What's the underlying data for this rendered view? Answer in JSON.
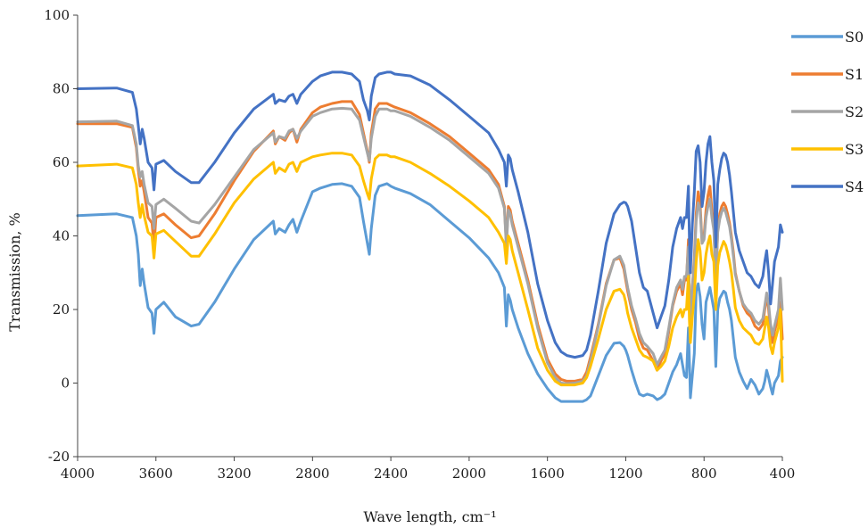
{
  "chart_data": {
    "type": "line",
    "title": "",
    "xlabel": "Wave length, cm⁻¹",
    "ylabel": "Transmission, %",
    "xlim": [
      4000,
      400
    ],
    "ylim": [
      -20,
      100
    ],
    "x_reversed": true,
    "xticks": [
      4000,
      3600,
      3200,
      2800,
      2400,
      2000,
      1600,
      1200,
      800,
      400
    ],
    "yticks": [
      -20,
      0,
      20,
      40,
      60,
      80,
      100
    ],
    "grid": false,
    "legend_position": "right",
    "x": [
      4000,
      3800,
      3720,
      3700,
      3690,
      3680,
      3670,
      3660,
      3640,
      3620,
      3610,
      3600,
      3560,
      3500,
      3420,
      3380,
      3300,
      3200,
      3100,
      3000,
      2990,
      2970,
      2940,
      2920,
      2900,
      2880,
      2860,
      2800,
      2760,
      2700,
      2650,
      2600,
      2560,
      2540,
      2520,
      2510,
      2500,
      2480,
      2460,
      2420,
      2400,
      2380,
      2300,
      2200,
      2100,
      2000,
      1900,
      1850,
      1820,
      1810,
      1800,
      1790,
      1780,
      1750,
      1700,
      1650,
      1600,
      1560,
      1530,
      1500,
      1460,
      1420,
      1400,
      1380,
      1340,
      1300,
      1260,
      1230,
      1210,
      1200,
      1190,
      1170,
      1150,
      1130,
      1110,
      1090,
      1060,
      1040,
      1020,
      1000,
      980,
      960,
      940,
      920,
      910,
      900,
      890,
      880,
      875,
      870,
      860,
      850,
      840,
      830,
      820,
      810,
      800,
      790,
      780,
      770,
      760,
      750,
      740,
      730,
      720,
      710,
      700,
      690,
      680,
      670,
      660,
      650,
      640,
      620,
      600,
      580,
      560,
      540,
      520,
      500,
      490,
      480,
      470,
      460,
      450,
      440,
      420,
      410,
      400
    ],
    "series": [
      {
        "name": "S0",
        "color": "#5b9bd5",
        "values": [
          45.5,
          46.0,
          45.0,
          40.0,
          35.0,
          26.5,
          31.0,
          27.0,
          20.5,
          19.0,
          13.5,
          20.0,
          22.0,
          18.0,
          15.5,
          16.0,
          22.0,
          31.0,
          39.0,
          44.0,
          40.5,
          42.0,
          41.0,
          43.0,
          44.5,
          41.0,
          44.0,
          52.0,
          53.0,
          54.0,
          54.2,
          53.5,
          50.5,
          44.0,
          38.0,
          35.0,
          42.0,
          51.0,
          53.5,
          54.2,
          53.5,
          53.0,
          51.5,
          48.5,
          44.0,
          39.5,
          34.0,
          30.0,
          26.0,
          15.5,
          24.0,
          22.5,
          20.0,
          15.0,
          8.0,
          2.5,
          -1.5,
          -4.0,
          -5.0,
          -5.0,
          -5.0,
          -5.0,
          -4.5,
          -3.5,
          2.0,
          7.5,
          10.8,
          11.0,
          10.0,
          9.0,
          7.5,
          3.5,
          0.0,
          -3.0,
          -3.5,
          -3.0,
          -3.5,
          -4.5,
          -4.0,
          -3.0,
          0.0,
          3.0,
          5.0,
          8.0,
          5.0,
          2.0,
          1.5,
          15.0,
          6.0,
          -4.0,
          2.0,
          8.0,
          25.0,
          27.0,
          23.5,
          16.0,
          12.0,
          22.0,
          24.0,
          26.0,
          23.0,
          20.0,
          4.5,
          20.0,
          23.0,
          24.0,
          25.0,
          24.5,
          22.0,
          20.0,
          17.0,
          12.0,
          7.0,
          3.0,
          0.5,
          -1.5,
          1.0,
          -0.5,
          -3.0,
          -1.5,
          0.5,
          3.5,
          1.5,
          -1.0,
          -3.0,
          0.0,
          2.0,
          6.0,
          7.0
        ]
      },
      {
        "name": "S1",
        "color": "#ed7d31",
        "values": [
          70.5,
          70.5,
          69.5,
          64.0,
          58.0,
          53.5,
          55.0,
          52.0,
          45.0,
          43.5,
          37.0,
          45.0,
          46.0,
          43.0,
          39.5,
          40.0,
          46.0,
          55.0,
          63.0,
          68.5,
          65.0,
          67.0,
          66.0,
          68.0,
          69.0,
          65.5,
          69.0,
          73.5,
          75.0,
          76.0,
          76.5,
          76.5,
          73.0,
          68.0,
          63.0,
          60.0,
          68.0,
          74.5,
          76.0,
          76.0,
          75.5,
          75.0,
          73.5,
          70.5,
          67.0,
          62.5,
          58.0,
          54.0,
          48.0,
          38.0,
          48.0,
          47.0,
          44.0,
          38.0,
          28.0,
          16.0,
          6.5,
          2.5,
          1.0,
          0.5,
          0.5,
          1.0,
          3.0,
          7.0,
          16.0,
          27.0,
          33.5,
          34.0,
          31.0,
          28.0,
          25.0,
          20.0,
          16.5,
          12.0,
          9.5,
          9.0,
          6.0,
          3.5,
          6.0,
          8.0,
          14.0,
          21.0,
          25.0,
          27.0,
          24.0,
          28.0,
          28.0,
          39.0,
          24.0,
          17.0,
          26.0,
          34.0,
          46.0,
          52.0,
          49.0,
          38.0,
          40.0,
          47.0,
          51.0,
          53.5,
          47.0,
          43.0,
          27.0,
          42.0,
          46.0,
          48.0,
          49.0,
          48.0,
          46.0,
          43.5,
          40.0,
          35.5,
          30.0,
          25.0,
          21.0,
          19.0,
          18.0,
          15.5,
          14.5,
          16.0,
          20.0,
          24.0,
          20.0,
          14.0,
          11.0,
          14.0,
          18.0,
          22.0,
          12.0
        ]
      },
      {
        "name": "S2",
        "color": "#a5a5a5",
        "values": [
          71.0,
          71.2,
          70.0,
          65.0,
          59.0,
          56.0,
          57.5,
          54.0,
          49.0,
          48.0,
          42.0,
          48.5,
          50.0,
          47.5,
          44.0,
          43.5,
          48.5,
          56.0,
          63.5,
          68.0,
          65.5,
          67.0,
          66.5,
          68.5,
          69.0,
          66.5,
          68.5,
          72.5,
          73.5,
          74.5,
          74.7,
          74.5,
          71.5,
          67.0,
          62.5,
          60.5,
          66.5,
          72.5,
          74.5,
          74.5,
          74.0,
          74.0,
          72.5,
          69.5,
          66.0,
          61.5,
          57.0,
          53.0,
          47.5,
          37.0,
          47.0,
          46.0,
          43.0,
          37.0,
          27.0,
          15.0,
          5.5,
          1.5,
          0.0,
          -0.2,
          0.0,
          0.5,
          2.0,
          6.0,
          15.5,
          26.5,
          33.5,
          34.5,
          32.0,
          29.0,
          26.0,
          21.0,
          17.5,
          13.5,
          11.0,
          10.0,
          8.0,
          5.0,
          7.0,
          9.0,
          15.0,
          21.5,
          26.0,
          28.0,
          25.5,
          29.0,
          29.0,
          37.0,
          25.0,
          18.0,
          26.0,
          33.0,
          44.0,
          49.0,
          47.0,
          38.0,
          39.0,
          45.0,
          48.0,
          50.0,
          45.0,
          41.5,
          28.0,
          41.0,
          44.5,
          46.5,
          47.5,
          46.5,
          44.5,
          42.5,
          39.0,
          34.5,
          29.5,
          25.0,
          21.5,
          20.0,
          19.0,
          17.0,
          16.0,
          17.5,
          21.0,
          24.5,
          21.5,
          16.0,
          13.0,
          15.5,
          20.0,
          28.5,
          20.0
        ]
      },
      {
        "name": "S3",
        "color": "#ffc000",
        "values": [
          59.0,
          59.5,
          58.5,
          54.0,
          49.0,
          45.0,
          48.5,
          45.5,
          41.0,
          40.0,
          34.0,
          40.5,
          41.5,
          38.5,
          34.5,
          34.5,
          40.5,
          49.0,
          55.5,
          60.0,
          57.0,
          58.5,
          57.5,
          59.5,
          60.0,
          57.5,
          60.0,
          61.5,
          62.0,
          62.5,
          62.5,
          62.0,
          59.0,
          55.0,
          51.5,
          50.0,
          55.5,
          61.0,
          62.0,
          62.0,
          61.5,
          61.5,
          60.0,
          57.0,
          53.5,
          49.5,
          45.0,
          41.0,
          38.0,
          32.5,
          40.0,
          39.0,
          36.0,
          30.0,
          20.0,
          9.5,
          3.5,
          0.5,
          -0.5,
          -0.5,
          -0.5,
          0.0,
          1.5,
          4.5,
          12.0,
          20.0,
          25.0,
          25.5,
          24.0,
          22.0,
          19.0,
          15.0,
          12.0,
          9.0,
          7.5,
          7.0,
          6.0,
          3.5,
          4.5,
          6.0,
          10.0,
          15.0,
          18.0,
          20.0,
          18.0,
          20.0,
          20.0,
          29.0,
          17.0,
          11.0,
          18.0,
          24.0,
          33.0,
          39.0,
          36.0,
          28.0,
          30.0,
          35.0,
          38.0,
          40.0,
          35.0,
          33.0,
          20.0,
          32.0,
          35.5,
          37.0,
          38.5,
          37.5,
          35.5,
          33.0,
          30.0,
          25.5,
          20.5,
          17.0,
          15.0,
          14.0,
          13.0,
          11.0,
          10.5,
          12.0,
          15.0,
          18.0,
          15.0,
          10.0,
          8.0,
          11.0,
          15.0,
          20.0,
          0.5
        ]
      },
      {
        "name": "S4",
        "color": "#4472c4",
        "values": [
          80.0,
          80.2,
          79.0,
          74.5,
          70.0,
          65.0,
          69.0,
          66.5,
          60.0,
          58.5,
          52.5,
          59.5,
          60.5,
          57.5,
          54.5,
          54.5,
          60.0,
          68.0,
          74.5,
          78.5,
          76.0,
          77.0,
          76.5,
          78.0,
          78.5,
          76.0,
          78.5,
          82.0,
          83.5,
          84.5,
          84.5,
          84.0,
          82.0,
          77.0,
          74.0,
          71.5,
          78.0,
          83.0,
          84.0,
          84.5,
          84.5,
          84.0,
          83.5,
          81.0,
          77.0,
          72.5,
          68.0,
          63.5,
          60.0,
          53.5,
          62.0,
          61.0,
          58.0,
          52.0,
          41.0,
          27.0,
          17.0,
          11.0,
          8.5,
          7.5,
          7.0,
          7.5,
          9.0,
          13.0,
          25.0,
          38.0,
          46.0,
          48.5,
          49.2,
          49.0,
          48.0,
          44.0,
          37.0,
          30.0,
          26.0,
          25.0,
          19.0,
          15.0,
          18.0,
          21.0,
          28.0,
          37.0,
          42.0,
          45.0,
          42.0,
          45.0,
          45.0,
          53.5,
          39.0,
          30.0,
          43.0,
          52.0,
          63.0,
          64.5,
          60.0,
          48.0,
          52.0,
          60.0,
          65.0,
          67.0,
          60.0,
          55.0,
          37.0,
          54.0,
          58.0,
          61.0,
          62.5,
          62.0,
          60.0,
          56.5,
          52.0,
          46.5,
          41.0,
          36.0,
          33.0,
          30.0,
          29.0,
          27.0,
          26.0,
          29.0,
          33.0,
          36.0,
          30.0,
          21.5,
          27.0,
          33.0,
          37.0,
          43.0,
          41.0
        ]
      }
    ]
  }
}
